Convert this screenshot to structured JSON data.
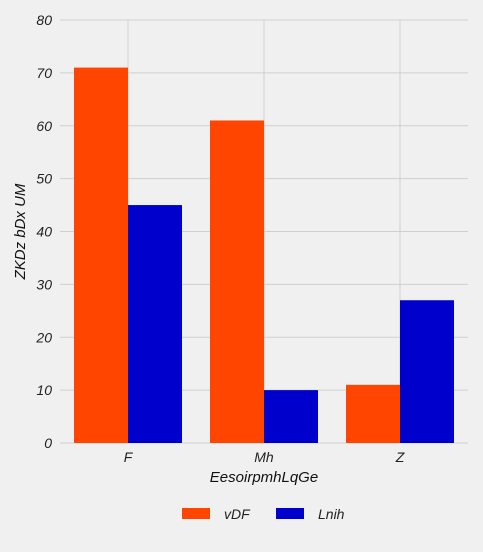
{
  "chart_data": {
    "type": "bar",
    "categories": [
      "F",
      "Mh",
      "Z"
    ],
    "series": [
      {
        "name": "vDF",
        "values": [
          71,
          61,
          11
        ],
        "color": "#ff4500"
      },
      {
        "name": "Lnih",
        "values": [
          45,
          10,
          27
        ],
        "color": "#0000cd"
      }
    ],
    "xlabel": "EesoirpmhLqGe",
    "ylabel": "ZKDz bDx UM",
    "ylim": [
      0,
      80
    ],
    "yticks": [
      0,
      10,
      20,
      30,
      40,
      50,
      60,
      70,
      80
    ],
    "grid": true,
    "legend_position": "bottom-center"
  }
}
